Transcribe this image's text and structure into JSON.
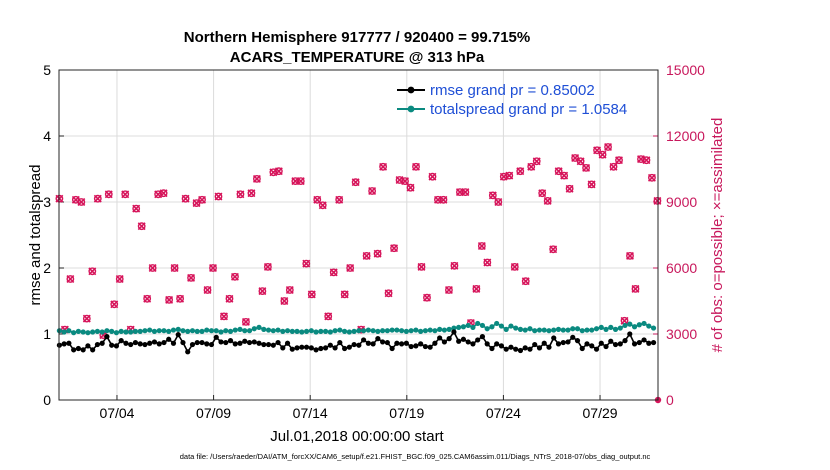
{
  "chart_data": {
    "type": "line",
    "title": "Northern Hemisphere 917777 / 920400 = 99.715%",
    "subtitle": "ACARS_TEMPERATURE @ 313 hPa",
    "xlabel": "Jul.01,2018 00:00:00 start",
    "ylabel": "rmse and totalspread",
    "y2label": "# of obs: o=possible; ×=assimilated",
    "footnote": "data file: /Users/raeder/DAI/ATM_forcXX/CAM6_setup/f.e21.FHIST_BGC.f09_025.CAM6assim.011/Diags_NTrS_2018-07/obs_diag_output.nc",
    "xlim": [
      1.0,
      32.0
    ],
    "x_ticks": [
      4,
      9,
      14,
      19,
      24,
      29
    ],
    "x_tick_labels": [
      "07/04",
      "07/09",
      "07/14",
      "07/19",
      "07/24",
      "07/29"
    ],
    "ylim": [
      0,
      5
    ],
    "y_ticks": [
      "0",
      "1",
      "2",
      "3",
      "4",
      "5"
    ],
    "y2lim": [
      0,
      15000
    ],
    "y2_ticks": [
      "0",
      "3000",
      "6000",
      "9000",
      "12000",
      "15000"
    ],
    "grid": true,
    "legend_position": "top-right",
    "colors": {
      "rmse": "#000000",
      "spread": "#0a8a80",
      "obs": "#d6145a",
      "y2axis": "#c8185c"
    },
    "series": [
      {
        "name": "rmse grand pr = 0.85002",
        "axis": "left",
        "values": [
          0.83,
          0.85,
          0.86,
          0.76,
          0.78,
          0.76,
          0.82,
          0.76,
          0.84,
          0.86,
          0.96,
          0.83,
          0.82,
          0.9,
          0.86,
          0.84,
          0.87,
          0.85,
          0.84,
          0.86,
          0.88,
          0.85,
          0.87,
          0.92,
          0.86,
          0.99,
          0.87,
          0.73,
          0.84,
          0.87,
          0.87,
          0.85,
          0.84,
          0.95,
          0.88,
          0.87,
          0.9,
          0.85,
          0.86,
          0.89,
          0.87,
          0.88,
          0.86,
          0.84,
          0.84,
          0.83,
          0.87,
          0.79,
          0.86,
          0.77,
          0.79,
          0.8,
          0.8,
          0.79,
          0.76,
          0.78,
          0.79,
          0.83,
          0.79,
          0.87,
          0.78,
          0.8,
          0.84,
          0.83,
          0.91,
          0.86,
          0.85,
          0.93,
          0.88,
          0.87,
          0.78,
          0.86,
          0.85,
          0.86,
          0.81,
          0.82,
          0.85,
          0.81,
          0.8,
          0.86,
          0.94,
          0.88,
          0.93,
          1.03,
          0.89,
          0.92,
          0.88,
          0.85,
          0.91,
          0.96,
          0.85,
          0.78,
          0.85,
          0.82,
          0.77,
          0.8,
          0.77,
          0.75,
          0.79,
          0.77,
          0.84,
          0.79,
          0.86,
          0.8,
          0.94,
          0.85,
          0.87,
          0.88,
          0.95,
          0.9,
          0.78,
          0.85,
          0.82,
          0.77,
          0.86,
          0.81,
          0.89,
          0.84,
          0.85,
          0.9,
          1.0,
          0.85,
          0.87,
          0.91,
          0.86,
          0.87
        ]
      },
      {
        "name": "totalspread grand pr = 1.0584",
        "axis": "left",
        "values": [
          1.05,
          1.03,
          1.05,
          1.02,
          1.04,
          1.03,
          1.02,
          1.03,
          1.04,
          1.03,
          1.05,
          1.04,
          1.02,
          1.04,
          1.03,
          1.03,
          1.04,
          1.04,
          1.05,
          1.06,
          1.04,
          1.05,
          1.05,
          1.04,
          1.06,
          1.07,
          1.05,
          1.04,
          1.05,
          1.04,
          1.04,
          1.06,
          1.05,
          1.05,
          1.03,
          1.05,
          1.04,
          1.06,
          1.07,
          1.05,
          1.05,
          1.08,
          1.1,
          1.07,
          1.06,
          1.05,
          1.06,
          1.04,
          1.05,
          1.04,
          1.04,
          1.03,
          1.04,
          1.05,
          1.03,
          1.04,
          1.04,
          1.03,
          1.05,
          1.06,
          1.04,
          1.03,
          1.04,
          1.05,
          1.05,
          1.06,
          1.05,
          1.04,
          1.05,
          1.05,
          1.06,
          1.06,
          1.05,
          1.04,
          1.05,
          1.06,
          1.04,
          1.05,
          1.06,
          1.05,
          1.07,
          1.06,
          1.07,
          1.09,
          1.1,
          1.11,
          1.13,
          1.1,
          1.16,
          1.13,
          1.08,
          1.11,
          1.16,
          1.12,
          1.07,
          1.12,
          1.09,
          1.07,
          1.06,
          1.08,
          1.05,
          1.06,
          1.06,
          1.05,
          1.06,
          1.07,
          1.06,
          1.06,
          1.08,
          1.08,
          1.05,
          1.06,
          1.06,
          1.08,
          1.1,
          1.07,
          1.1,
          1.07,
          1.09,
          1.13,
          1.15,
          1.11,
          1.14,
          1.16,
          1.12,
          1.09
        ]
      },
      {
        "name": "obs possible",
        "axis": "right",
        "marker": "o",
        "values": [
          9150,
          3200,
          5500,
          9100,
          9000,
          3700,
          5850,
          9150,
          2950,
          9350,
          4350,
          5500,
          9350,
          3200,
          8700,
          7900,
          4600,
          6000,
          9350,
          9400,
          4550,
          6000,
          4600,
          9150,
          5550,
          8950,
          9100,
          5000,
          6000,
          9250,
          3800,
          4600,
          5600,
          9350,
          3550,
          9400,
          10050,
          4950,
          6050,
          10350,
          10400,
          4500,
          5000,
          9950,
          9950,
          6200,
          4800,
          9100,
          8850,
          3800,
          5800,
          9100,
          4800,
          6000,
          9900,
          3200,
          6550,
          9500,
          6650,
          10600,
          4850,
          6900,
          10000,
          9950,
          9650,
          10600,
          6050,
          4650,
          10150,
          9100,
          9100,
          5000,
          6100,
          9450,
          9450,
          3500,
          5050,
          7000,
          6250,
          9300,
          9000,
          10150,
          10200,
          6050,
          10400,
          5400,
          10600,
          10850,
          9400,
          9050,
          6850,
          10400,
          10200,
          9600,
          11000,
          10850,
          10550,
          9800,
          11350,
          11150,
          11500,
          10600,
          10900,
          3600,
          6550,
          5050,
          10950,
          10900,
          10100,
          9050
        ]
      },
      {
        "name": "obs assimilated",
        "axis": "right",
        "marker": "x",
        "values": [
          9150,
          3200,
          5500,
          9100,
          9000,
          3700,
          5850,
          9150,
          2950,
          9350,
          4350,
          5500,
          9350,
          3200,
          8700,
          7900,
          4600,
          6000,
          9350,
          9400,
          4550,
          6000,
          4600,
          9150,
          5550,
          8950,
          9100,
          5000,
          6000,
          9250,
          3800,
          4600,
          5600,
          9350,
          3550,
          9400,
          10050,
          4950,
          6050,
          10350,
          10400,
          4500,
          5000,
          9950,
          9950,
          6200,
          4800,
          9100,
          8850,
          3800,
          5800,
          9100,
          4800,
          6000,
          9900,
          3200,
          6550,
          9500,
          6650,
          10600,
          4850,
          6900,
          10000,
          9950,
          9650,
          10600,
          6050,
          4650,
          10150,
          9100,
          9100,
          5000,
          6100,
          9450,
          9450,
          3500,
          5050,
          7000,
          6250,
          9300,
          9000,
          10150,
          10200,
          6050,
          10400,
          5400,
          10600,
          10850,
          9400,
          9050,
          6850,
          10400,
          10200,
          9600,
          11000,
          10850,
          10550,
          9800,
          11350,
          11150,
          11500,
          10600,
          10900,
          3600,
          6550,
          5050,
          10950,
          10900,
          10100,
          9050
        ]
      }
    ]
  }
}
